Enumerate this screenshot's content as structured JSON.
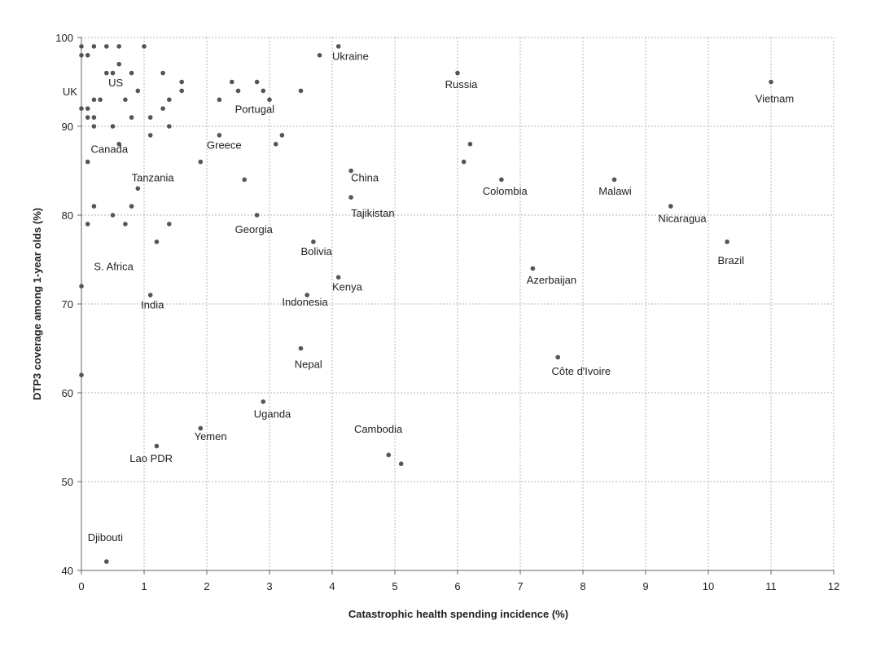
{
  "chart_data": {
    "type": "scatter",
    "xlabel": "Catastrophic health spending incidence (%)",
    "ylabel": "DTP3 coverage among 1-year olds (%)",
    "xlim": [
      0,
      12
    ],
    "ylim": [
      40,
      100
    ],
    "xticks": [
      "0",
      "1",
      "2",
      "3",
      "4",
      "5",
      "6",
      "7",
      "8",
      "9",
      "10",
      "11",
      "12"
    ],
    "yticks": [
      "40",
      "50",
      "60",
      "70",
      "80",
      "90",
      "100"
    ],
    "grid": true,
    "marker_color": "#555555",
    "points": [
      {
        "x": 0.0,
        "y": 99
      },
      {
        "x": 0.0,
        "y": 98
      },
      {
        "x": 0.1,
        "y": 98
      },
      {
        "x": 0.2,
        "y": 99
      },
      {
        "x": 0.4,
        "y": 99
      },
      {
        "x": 0.6,
        "y": 99
      },
      {
        "x": 1.0,
        "y": 99
      },
      {
        "x": 0.6,
        "y": 97
      },
      {
        "x": 0.4,
        "y": 96
      },
      {
        "x": 0.5,
        "y": 96
      },
      {
        "x": 0.8,
        "y": 96
      },
      {
        "x": 1.3,
        "y": 96
      },
      {
        "x": 1.6,
        "y": 95
      },
      {
        "x": 0.9,
        "y": 94
      },
      {
        "x": 1.6,
        "y": 94
      },
      {
        "x": 0.2,
        "y": 93
      },
      {
        "x": 0.3,
        "y": 93
      },
      {
        "x": 0.7,
        "y": 93
      },
      {
        "x": 1.4,
        "y": 93
      },
      {
        "x": 0.0,
        "y": 92
      },
      {
        "x": 0.1,
        "y": 92
      },
      {
        "x": 1.3,
        "y": 92
      },
      {
        "x": 0.1,
        "y": 91
      },
      {
        "x": 0.2,
        "y": 91
      },
      {
        "x": 0.8,
        "y": 91
      },
      {
        "x": 1.1,
        "y": 91
      },
      {
        "x": 0.2,
        "y": 90
      },
      {
        "x": 0.5,
        "y": 90
      },
      {
        "x": 1.4,
        "y": 90
      },
      {
        "x": 1.1,
        "y": 89
      },
      {
        "x": 0.6,
        "y": 88
      },
      {
        "x": 0.1,
        "y": 86
      },
      {
        "x": 0.9,
        "y": 83
      },
      {
        "x": 0.2,
        "y": 81
      },
      {
        "x": 0.8,
        "y": 81
      },
      {
        "x": 0.5,
        "y": 80
      },
      {
        "x": 0.1,
        "y": 79
      },
      {
        "x": 0.7,
        "y": 79
      },
      {
        "x": 1.4,
        "y": 79
      },
      {
        "x": 1.2,
        "y": 77
      },
      {
        "x": 0.0,
        "y": 72
      },
      {
        "x": 1.1,
        "y": 71
      },
      {
        "x": 0.0,
        "y": 62
      },
      {
        "x": 2.2,
        "y": 93
      },
      {
        "x": 2.4,
        "y": 95
      },
      {
        "x": 2.5,
        "y": 94
      },
      {
        "x": 2.8,
        "y": 95
      },
      {
        "x": 2.9,
        "y": 94
      },
      {
        "x": 3.0,
        "y": 93
      },
      {
        "x": 3.5,
        "y": 94
      },
      {
        "x": 2.2,
        "y": 89
      },
      {
        "x": 3.2,
        "y": 89
      },
      {
        "x": 3.1,
        "y": 88
      },
      {
        "x": 1.9,
        "y": 86
      },
      {
        "x": 2.6,
        "y": 84
      },
      {
        "x": 2.8,
        "y": 80
      },
      {
        "x": 3.8,
        "y": 98
      },
      {
        "x": 4.1,
        "y": 99
      },
      {
        "x": 4.3,
        "y": 85
      },
      {
        "x": 4.3,
        "y": 82
      },
      {
        "x": 3.7,
        "y": 77
      },
      {
        "x": 4.1,
        "y": 73
      },
      {
        "x": 3.6,
        "y": 71
      },
      {
        "x": 3.5,
        "y": 65
      },
      {
        "x": 2.9,
        "y": 59
      },
      {
        "x": 1.9,
        "y": 56
      },
      {
        "x": 1.2,
        "y": 54
      },
      {
        "x": 0.4,
        "y": 41
      },
      {
        "x": 4.9,
        "y": 53
      },
      {
        "x": 5.1,
        "y": 52
      },
      {
        "x": 6.0,
        "y": 96
      },
      {
        "x": 6.2,
        "y": 88
      },
      {
        "x": 6.1,
        "y": 86
      },
      {
        "x": 6.7,
        "y": 84
      },
      {
        "x": 7.2,
        "y": 74
      },
      {
        "x": 7.6,
        "y": 64
      },
      {
        "x": 8.5,
        "y": 84
      },
      {
        "x": 9.4,
        "y": 81
      },
      {
        "x": 10.3,
        "y": 77
      },
      {
        "x": 11.0,
        "y": 95
      }
    ],
    "annotations": [
      {
        "text": "UK",
        "x": -0.3,
        "y": 93.5
      },
      {
        "text": "US",
        "x": 0.43,
        "y": 94.5
      },
      {
        "text": "Canada",
        "x": 0.15,
        "y": 87.0
      },
      {
        "text": "Tanzania",
        "x": 0.8,
        "y": 83.8
      },
      {
        "text": "S. Africa",
        "x": 0.2,
        "y": 73.8
      },
      {
        "text": "India",
        "x": 0.95,
        "y": 69.5
      },
      {
        "text": "Lao PDR",
        "x": 0.77,
        "y": 52.2
      },
      {
        "text": "Djibouti",
        "x": 0.1,
        "y": 43.3
      },
      {
        "text": "Greece",
        "x": 2.0,
        "y": 87.5
      },
      {
        "text": "Portugal",
        "x": 2.45,
        "y": 91.5
      },
      {
        "text": "Georgia",
        "x": 2.45,
        "y": 78.0
      },
      {
        "text": "Ukraine",
        "x": 4.0,
        "y": 97.5
      },
      {
        "text": "Russia",
        "x": 5.8,
        "y": 94.3
      },
      {
        "text": "China",
        "x": 4.3,
        "y": 83.8
      },
      {
        "text": "Tajikistan",
        "x": 4.3,
        "y": 79.8
      },
      {
        "text": "Bolivia",
        "x": 3.5,
        "y": 75.5
      },
      {
        "text": "Kenya",
        "x": 4.0,
        "y": 71.5
      },
      {
        "text": "Indonesia",
        "x": 3.2,
        "y": 69.8
      },
      {
        "text": "Nepal",
        "x": 3.4,
        "y": 62.8
      },
      {
        "text": "Uganda",
        "x": 2.75,
        "y": 57.2
      },
      {
        "text": "Yemen",
        "x": 1.8,
        "y": 54.7
      },
      {
        "text": "Cambodia",
        "x": 4.35,
        "y": 55.5
      },
      {
        "text": "Colombia",
        "x": 6.4,
        "y": 82.3
      },
      {
        "text": "Malawi",
        "x": 8.25,
        "y": 82.3
      },
      {
        "text": "Nicaragua",
        "x": 9.2,
        "y": 79.2
      },
      {
        "text": "Brazil",
        "x": 10.15,
        "y": 74.5
      },
      {
        "text": "Azerbaijan",
        "x": 7.1,
        "y": 72.3
      },
      {
        "text": "Côte d'Ivoire",
        "x": 7.5,
        "y": 62.0
      },
      {
        "text": "Vietnam",
        "x": 10.75,
        "y": 92.7
      }
    ]
  }
}
